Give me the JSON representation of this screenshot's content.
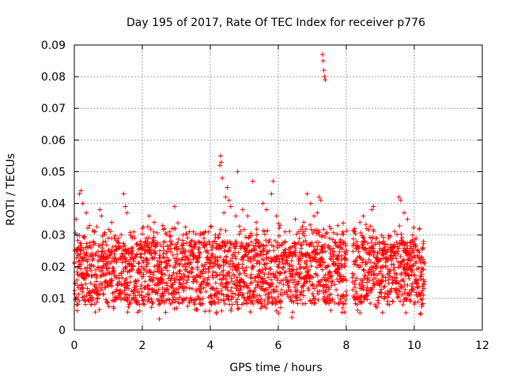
{
  "chart_data": {
    "type": "scatter",
    "title": "Day 195 of 2017, Rate Of TEC Index for receiver p776",
    "xlabel": "GPS time / hours",
    "ylabel": "ROTI / TECUs",
    "xlim": [
      0,
      12
    ],
    "ylim": [
      0,
      0.09
    ],
    "xticks": [
      0,
      2,
      4,
      6,
      8,
      10,
      12
    ],
    "yticks": [
      0,
      0.01,
      0.02,
      0.03,
      0.04,
      0.05,
      0.06,
      0.07,
      0.08,
      0.09
    ],
    "xtick_labels": [
      "0",
      "2",
      "4",
      "6",
      "8",
      "10",
      "12"
    ],
    "ytick_labels": [
      "0",
      "0.01",
      "0.02",
      "0.03",
      "0.04",
      "0.05",
      "0.06",
      "0.07",
      "0.08",
      "0.09"
    ],
    "grid": true,
    "marker": "plus",
    "color": "#ff0000",
    "data_gaps_hours": [
      [
        8.02,
        8.18
      ]
    ],
    "series": [
      {
        "name": "ROTI",
        "points": [
          [
            0.05,
            0.035
          ],
          [
            0.08,
            0.03
          ],
          [
            0.12,
            0.026
          ],
          [
            0.15,
            0.043
          ],
          [
            0.2,
            0.044
          ],
          [
            0.25,
            0.04
          ],
          [
            0.35,
            0.037
          ],
          [
            0.45,
            0.033
          ],
          [
            0.6,
            0.031
          ],
          [
            0.75,
            0.038
          ],
          [
            0.8,
            0.036
          ],
          [
            1.0,
            0.029
          ],
          [
            1.1,
            0.034
          ],
          [
            1.3,
            0.029
          ],
          [
            1.45,
            0.043
          ],
          [
            1.5,
            0.039
          ],
          [
            1.55,
            0.037
          ],
          [
            1.75,
            0.031
          ],
          [
            2.0,
            0.032
          ],
          [
            2.2,
            0.036
          ],
          [
            2.35,
            0.034
          ],
          [
            2.5,
            0.0035
          ],
          [
            2.6,
            0.033
          ],
          [
            2.8,
            0.031
          ],
          [
            2.95,
            0.039
          ],
          [
            3.2,
            0.03
          ],
          [
            3.5,
            0.031
          ],
          [
            3.7,
            0.03
          ],
          [
            3.95,
            0.031
          ],
          [
            4.15,
            0.03
          ],
          [
            4.28,
            0.052
          ],
          [
            4.3,
            0.055
          ],
          [
            4.32,
            0.053
          ],
          [
            4.35,
            0.048
          ],
          [
            4.4,
            0.037
          ],
          [
            4.45,
            0.042
          ],
          [
            4.5,
            0.045
          ],
          [
            4.55,
            0.041
          ],
          [
            4.6,
            0.039
          ],
          [
            4.75,
            0.036
          ],
          [
            4.8,
            0.05
          ],
          [
            4.95,
            0.038
          ],
          [
            5.1,
            0.036
          ],
          [
            5.25,
            0.047
          ],
          [
            5.35,
            0.034
          ],
          [
            5.55,
            0.04
          ],
          [
            5.65,
            0.038
          ],
          [
            5.8,
            0.043
          ],
          [
            5.85,
            0.047
          ],
          [
            5.95,
            0.036
          ],
          [
            6.05,
            0.033
          ],
          [
            6.2,
            0.031
          ],
          [
            6.4,
            0.004
          ],
          [
            6.5,
            0.035
          ],
          [
            6.6,
            0.031
          ],
          [
            6.75,
            0.034
          ],
          [
            6.85,
            0.043
          ],
          [
            6.95,
            0.04
          ],
          [
            7.05,
            0.036
          ],
          [
            7.15,
            0.037
          ],
          [
            7.2,
            0.042
          ],
          [
            7.25,
            0.041
          ],
          [
            7.3,
            0.087
          ],
          [
            7.32,
            0.085
          ],
          [
            7.34,
            0.082
          ],
          [
            7.36,
            0.08
          ],
          [
            7.38,
            0.079
          ],
          [
            7.55,
            0.032
          ],
          [
            7.75,
            0.033
          ],
          [
            7.9,
            0.031
          ],
          [
            8.25,
            0.032
          ],
          [
            8.4,
            0.034
          ],
          [
            8.5,
            0.036
          ],
          [
            8.6,
            0.032
          ],
          [
            8.75,
            0.038
          ],
          [
            8.8,
            0.039
          ],
          [
            8.9,
            0.029
          ],
          [
            9.1,
            0.028
          ],
          [
            9.25,
            0.029
          ],
          [
            9.4,
            0.027
          ],
          [
            9.55,
            0.042
          ],
          [
            9.6,
            0.041
          ],
          [
            9.7,
            0.037
          ],
          [
            9.8,
            0.035
          ],
          [
            9.95,
            0.03
          ],
          [
            10.05,
            0.029
          ],
          [
            10.15,
            0.032
          ],
          [
            10.25,
            0.026
          ]
        ]
      }
    ]
  }
}
